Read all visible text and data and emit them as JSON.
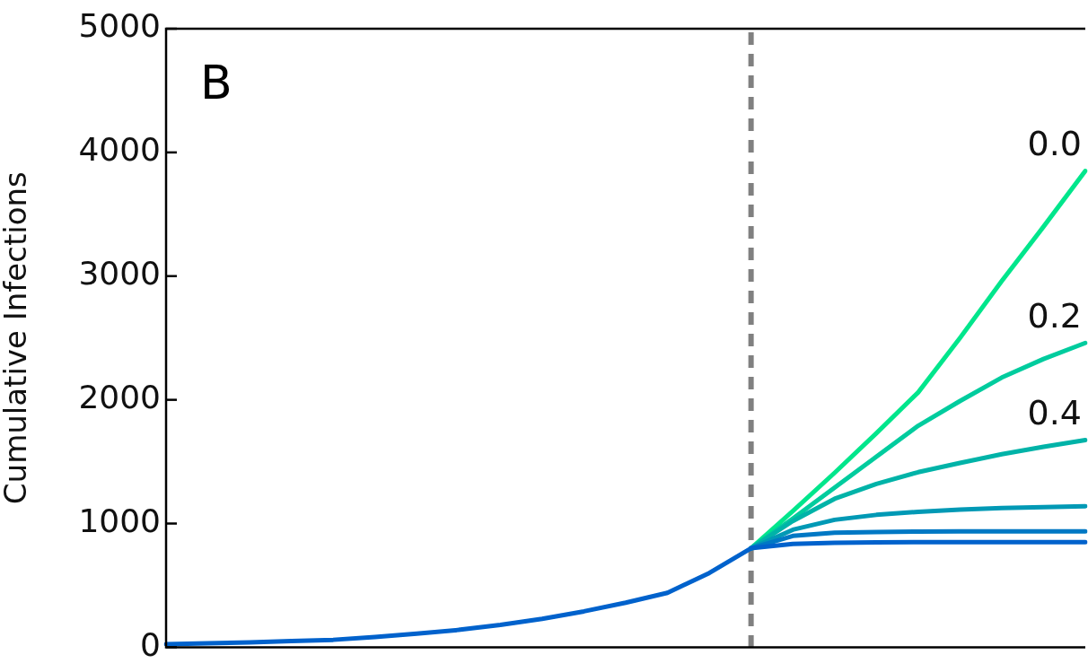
{
  "chart_data": {
    "type": "line",
    "title": "B",
    "ylabel": "Cumulative Infections",
    "categories": [
      null,
      null,
      null,
      null,
      null,
      null,
      null,
      null,
      null,
      null,
      null,
      null,
      null,
      null,
      null,
      null,
      null,
      null,
      null,
      null,
      null,
      null,
      null
    ],
    "ylim": [
      0,
      5000
    ],
    "yticks": [
      0,
      1000,
      2000,
      3000,
      4000,
      5000
    ],
    "grid": false,
    "legend": false,
    "marker": "none",
    "line_style": "solid",
    "series": [
      {
        "name": "0.0",
        "color": "#00e68c",
        "values": [
          null,
          null,
          null,
          null,
          null,
          null,
          null,
          null,
          null,
          null,
          null,
          null,
          null,
          null,
          800,
          1100,
          1410,
          1730,
          2060,
          2500,
          2960,
          3400,
          3850
        ]
      },
      {
        "name": "0.2",
        "color": "#00cc9e",
        "values": [
          null,
          null,
          null,
          null,
          null,
          null,
          null,
          null,
          null,
          null,
          null,
          null,
          null,
          null,
          800,
          1040,
          1290,
          1540,
          1790,
          1990,
          2180,
          2330,
          2460
        ]
      },
      {
        "name": "0.4",
        "color": "#00b3a8",
        "values": [
          null,
          null,
          null,
          null,
          null,
          null,
          null,
          null,
          null,
          null,
          null,
          null,
          null,
          null,
          800,
          1020,
          1200,
          1320,
          1415,
          1490,
          1560,
          1620,
          1675
        ]
      },
      {
        "color": "#0099b5",
        "values": [
          null,
          null,
          null,
          null,
          null,
          null,
          null,
          null,
          null,
          null,
          null,
          null,
          null,
          null,
          800,
          950,
          1030,
          1070,
          1095,
          1112,
          1125,
          1133,
          1140
        ]
      },
      {
        "color": "#0078c4",
        "values": [
          null,
          null,
          null,
          null,
          null,
          null,
          null,
          null,
          null,
          null,
          null,
          null,
          null,
          null,
          800,
          900,
          925,
          932,
          935,
          936,
          937,
          937,
          937
        ]
      },
      {
        "color": "#0062cc",
        "values": [
          25,
          32,
          40,
          50,
          60,
          82,
          110,
          140,
          180,
          230,
          290,
          360,
          440,
          600,
          800,
          835,
          845,
          848,
          849,
          850,
          850,
          850,
          850
        ]
      }
    ]
  }
}
